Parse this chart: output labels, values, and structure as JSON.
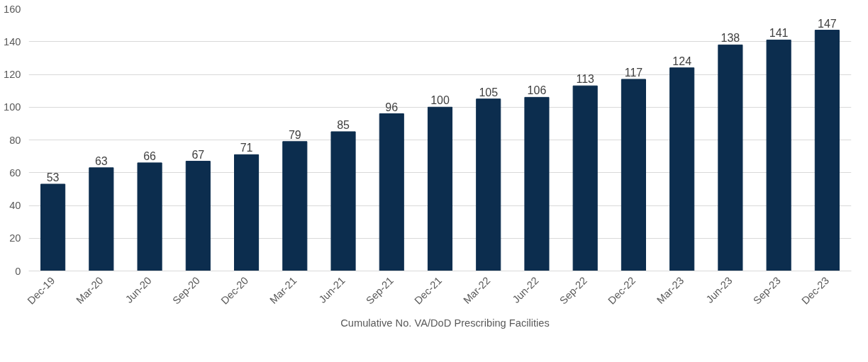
{
  "chart_data": {
    "type": "bar",
    "categories": [
      "Dec-19",
      "Mar-20",
      "Jun-20",
      "Sep-20",
      "Dec-20",
      "Mar-21",
      "Jun-21",
      "Sep-21",
      "Dec-21",
      "Mar-22",
      "Jun-22",
      "Sep-22",
      "Dec-22",
      "Mar-23",
      "Jun-23",
      "Sep-23",
      "Dec-23"
    ],
    "series": [
      {
        "name": "Cumulative No. VA/DoD Prescribing Facilities",
        "color": "#0c2d4e",
        "values": [
          53,
          63,
          66,
          67,
          71,
          79,
          85,
          96,
          100,
          105,
          106,
          113,
          117,
          124,
          138,
          141,
          147
        ]
      }
    ],
    "ylim": [
      0,
      160
    ],
    "yticks": [
      0,
      20,
      40,
      60,
      80,
      100,
      120,
      140,
      160
    ],
    "grid": "y",
    "legend": "bottom",
    "data_labels": true
  }
}
